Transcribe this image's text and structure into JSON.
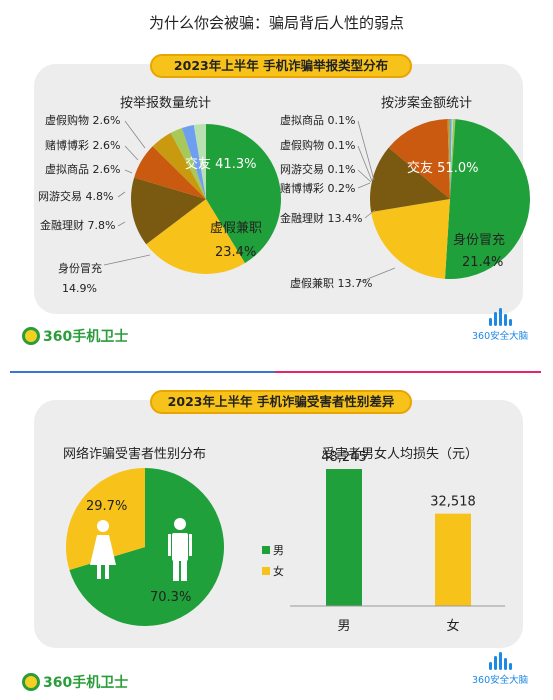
{
  "page_title": "为什么你会被骗：骗局背后人性的弱点",
  "top_banner": "2023年上半年 手机诈骗举报类型分布",
  "bottom_banner": "2023年上半年 手机诈骗受害者性别差异",
  "logos": {
    "guard_text": "360手机卫士",
    "brain_text": "360安全大脑"
  },
  "colors": {
    "green": "#1fa03a",
    "yellow": "#f7c21a",
    "olive": "#7a5a10",
    "orange": "#c95a10",
    "gold": "#c99a10",
    "blue": "#6d9ef0",
    "lightgreen": "#b8e0b0"
  },
  "chart_data": [
    {
      "type": "pie",
      "title": "按举报数量统计",
      "slices": [
        {
          "label": "交友",
          "value": 41.3,
          "display": "41.3%"
        },
        {
          "label": "虚假兼职",
          "value": 23.4,
          "display": "23.4%"
        },
        {
          "label": "身份冒充",
          "value": 14.9,
          "display": "14.9%"
        },
        {
          "label": "金融理财",
          "value": 7.8,
          "display": "7.8%"
        },
        {
          "label": "网游交易",
          "value": 4.8,
          "display": "4.8%"
        },
        {
          "label": "虚拟商品",
          "value": 2.6,
          "display": "2.6%"
        },
        {
          "label": "赌博博彩",
          "value": 2.6,
          "display": "2.6%"
        },
        {
          "label": "虚假购物",
          "value": 2.6,
          "display": "2.6%"
        }
      ]
    },
    {
      "type": "pie",
      "title": "按涉案金额统计",
      "slices": [
        {
          "label": "交友",
          "value": 51.0,
          "display": "51.0%"
        },
        {
          "label": "身份冒充",
          "value": 21.4,
          "display": "21.4%"
        },
        {
          "label": "虚假兼职",
          "value": 13.7,
          "display": "13.7%"
        },
        {
          "label": "金融理财",
          "value": 13.4,
          "display": "13.4%"
        },
        {
          "label": "赌博博彩",
          "value": 0.2,
          "display": "0.2%"
        },
        {
          "label": "网游交易",
          "value": 0.1,
          "display": "0.1%"
        },
        {
          "label": "虚假购物",
          "value": 0.1,
          "display": "0.1%"
        },
        {
          "label": "虚拟商品",
          "value": 0.1,
          "display": "0.1%"
        }
      ]
    },
    {
      "type": "pie",
      "title": "网络诈骗受害者性别分布",
      "slices": [
        {
          "label": "男",
          "value": 70.3,
          "display": "70.3%"
        },
        {
          "label": "女",
          "value": 29.7,
          "display": "29.7%"
        }
      ],
      "legend": [
        "男",
        "女"
      ],
      "legend_placement": "right"
    },
    {
      "type": "bar",
      "title": "受害者男女人均损失（元）",
      "categories": [
        "男",
        "女"
      ],
      "values": [
        48245,
        32518
      ],
      "value_labels": [
        "48,245",
        "32,518"
      ],
      "ylim": [
        0,
        52000
      ]
    }
  ]
}
